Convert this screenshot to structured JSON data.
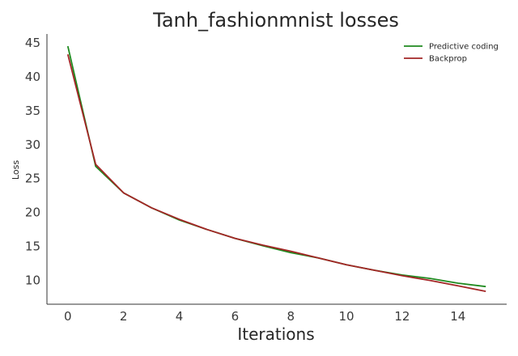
{
  "chart_data": {
    "type": "line",
    "title": "Tanh_fashionmnist losses",
    "xlabel": "Iterations",
    "ylabel": "Loss",
    "xlim": [
      -0.75,
      15.75
    ],
    "ylim": [
      6.5,
      46.3
    ],
    "xticks": [
      0,
      2,
      4,
      6,
      8,
      10,
      12,
      14
    ],
    "yticks": [
      10,
      15,
      20,
      25,
      30,
      35,
      40,
      45
    ],
    "grid": false,
    "legend_position": "top-right",
    "x": [
      0,
      1,
      2,
      3,
      4,
      5,
      6,
      7,
      8,
      9,
      10,
      11,
      12,
      13,
      14,
      15
    ],
    "series": [
      {
        "name": "Predictive coding",
        "color": "#1f8a1f",
        "values": [
          44.5,
          26.8,
          22.9,
          20.7,
          18.9,
          17.5,
          16.2,
          15.1,
          14.1,
          13.3,
          12.3,
          11.5,
          10.8,
          10.3,
          9.6,
          9.1
        ]
      },
      {
        "name": "Backprop",
        "color": "#a32626",
        "values": [
          43.3,
          27.1,
          22.9,
          20.7,
          19.0,
          17.5,
          16.2,
          15.2,
          14.3,
          13.3,
          12.3,
          11.5,
          10.7,
          10.0,
          9.2,
          8.4
        ]
      }
    ]
  }
}
